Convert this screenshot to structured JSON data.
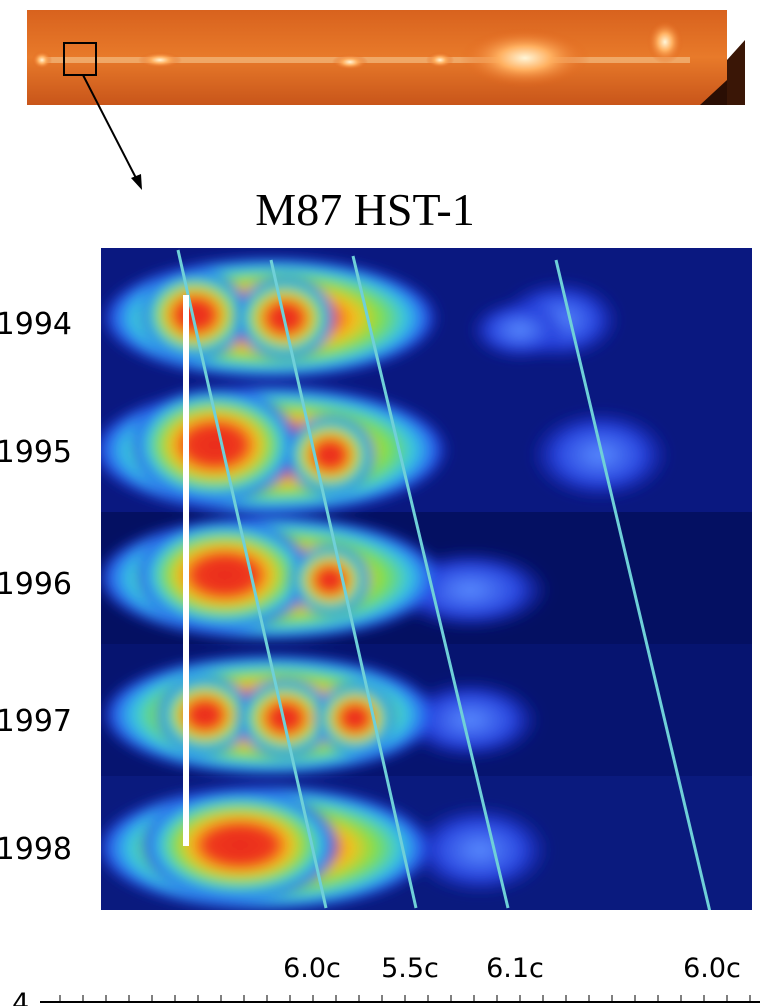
{
  "title": "M87 HST-1",
  "epochs": [
    "1994",
    "1995",
    "1996",
    "1997",
    "1998"
  ],
  "speeds": [
    "6.0c",
    "5.5c",
    "6.1c",
    "6.0c"
  ],
  "axis_label": "4"
}
